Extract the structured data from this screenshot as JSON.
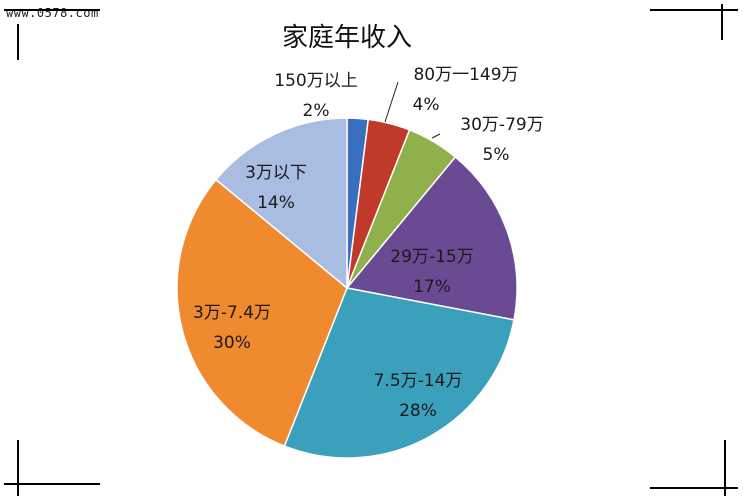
{
  "watermark": "www.0578.com",
  "chart_data": {
    "type": "pie",
    "title": "家庭年收入",
    "start_angle_deg": 0,
    "direction": "clockwise",
    "slices": [
      {
        "label": "150万以上",
        "value": 2,
        "value_label": "2%",
        "color": "#3a6fbf"
      },
      {
        "label": "80万一149万",
        "value": 4,
        "value_label": "4%",
        "color": "#c0392b"
      },
      {
        "label": "30万-79万",
        "value": 5,
        "value_label": "5%",
        "color": "#8fb04a"
      },
      {
        "label": "29万-15万",
        "value": 17,
        "value_label": "17%",
        "color": "#6b4a94"
      },
      {
        "label": "7.5万-14万",
        "value": 28,
        "value_label": "28%",
        "color": "#3aa0bb"
      },
      {
        "label": "3万-7.4万",
        "value": 30,
        "value_label": "30%",
        "color": "#ef8a2f"
      },
      {
        "label": "3万以下",
        "value": 14,
        "value_label": "14%",
        "color": "#a9bde3"
      }
    ]
  }
}
